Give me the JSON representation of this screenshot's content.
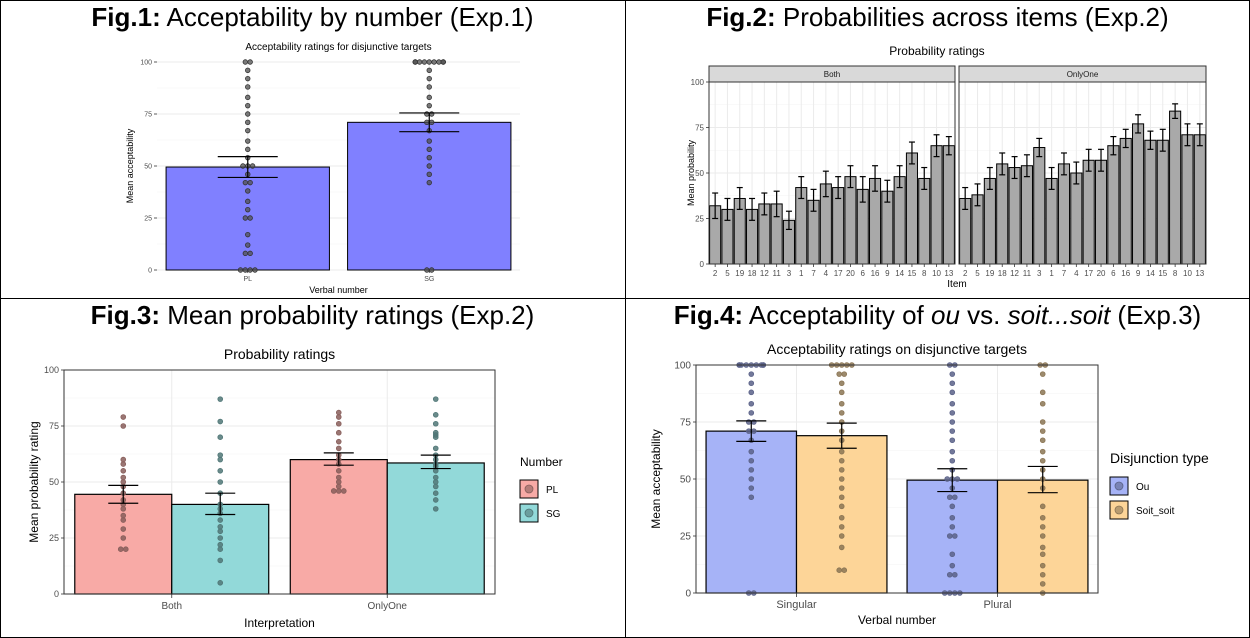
{
  "figures": [
    {
      "label": "Fig.1:",
      "title": " Acceptability by number (Exp.1)"
    },
    {
      "label": "Fig.2:",
      "title": " Probabilities across items (Exp.2)"
    },
    {
      "label": "Fig.3:",
      "title": " Mean probability ratings (Exp.2)"
    },
    {
      "label": "Fig.4:",
      "title_pre": " Acceptability of ",
      "title_em1": "ou",
      "title_mid": " vs. ",
      "title_em2": "soit...soit",
      "title_post": " (Exp.3)"
    }
  ],
  "colors": {
    "fig1_bar": "#8080ff",
    "fig2_bar": "#a9a9a9",
    "pl": "#f8aaa6",
    "sg": "#92d9d9",
    "ou": "#a6b3f7",
    "soit_soit": "#fdd598",
    "facet_strip": "#d9d9d9",
    "panel_border": "#333333"
  },
  "chart_data": [
    {
      "type": "bar",
      "title": "Acceptability ratings for disjunctive targets",
      "xlabel": "Verbal number",
      "ylabel": "Mean acceptability",
      "categories": [
        "PL",
        "SG"
      ],
      "values": [
        49.5,
        71.0
      ],
      "error": [
        [
          44.5,
          54.5
        ],
        [
          66.5,
          75.5
        ]
      ],
      "ylim": [
        0,
        100
      ],
      "yticks": [
        0,
        25,
        50,
        75,
        100
      ],
      "grid": true,
      "points": [
        [
          0,
          0,
          0,
          0,
          8,
          8,
          12,
          17,
          25,
          25,
          29,
          33,
          38,
          42,
          42,
          46,
          50,
          50,
          50,
          54,
          58,
          62,
          67,
          71,
          75,
          79,
          83,
          88,
          92,
          96,
          100,
          100
        ],
        [
          0,
          0,
          42,
          46,
          50,
          54,
          58,
          62,
          67,
          71,
          71,
          75,
          75,
          79,
          83,
          88,
          92,
          96,
          100,
          100,
          100,
          100,
          100,
          100,
          100,
          100,
          100
        ]
      ]
    },
    {
      "type": "bar",
      "title": "Probability ratings",
      "xlabel": "Item",
      "ylabel": "Mean probability",
      "facets": [
        "Both",
        "OnlyOne"
      ],
      "categories": [
        "2",
        "5",
        "19",
        "18",
        "12",
        "11",
        "3",
        "1",
        "7",
        "4",
        "17",
        "20",
        "6",
        "16",
        "9",
        "14",
        "15",
        "8",
        "10",
        "13"
      ],
      "series": [
        {
          "facet": "Both",
          "values": [
            32,
            30,
            36,
            30,
            33,
            33,
            24,
            42,
            35,
            44,
            42,
            48,
            41,
            47,
            40,
            48,
            61,
            47,
            65,
            65
          ],
          "error": [
            7,
            6,
            6,
            6,
            6,
            7,
            5,
            6,
            6,
            7,
            6,
            6,
            7,
            7,
            6,
            6,
            6,
            6,
            6,
            5
          ]
        },
        {
          "facet": "OnlyOne",
          "values": [
            36,
            38,
            47,
            55,
            53,
            54,
            64,
            47,
            55,
            50,
            57,
            57,
            65,
            69,
            77,
            68,
            68,
            84,
            71,
            71
          ],
          "error": [
            6,
            6,
            6,
            6,
            6,
            6,
            5,
            6,
            6,
            6,
            6,
            6,
            5,
            5,
            5,
            5,
            6,
            4,
            6,
            6
          ]
        }
      ],
      "ylim": [
        0,
        100
      ],
      "yticks": [
        0,
        25,
        50,
        75,
        100
      ],
      "grid": true
    },
    {
      "type": "bar",
      "title": "Probability ratings",
      "xlabel": "Interpretation",
      "ylabel": "Mean probability rating",
      "categories": [
        "Both",
        "OnlyOne"
      ],
      "legend": {
        "title": "Number",
        "position": "right"
      },
      "series": [
        {
          "name": "PL",
          "values": [
            44.5,
            60.0
          ],
          "error": [
            [
              40.5,
              48.5
            ],
            [
              57.5,
              63.0
            ]
          ],
          "points": [
            [
              20,
              20,
              25,
              29,
              33,
              35,
              38,
              40,
              42,
              45,
              48,
              50,
              52,
              55,
              58,
              60,
              75,
              79
            ],
            [
              46,
              46,
              46,
              48,
              50,
              52,
              55,
              58,
              60,
              62,
              65,
              68,
              72,
              76,
              79,
              81
            ]
          ]
        },
        {
          "name": "SG",
          "values": [
            40.0,
            58.5
          ],
          "error": [
            [
              35.5,
              45.0
            ],
            [
              56.0,
              62.0
            ]
          ],
          "points": [
            [
              5,
              15,
              20,
              22,
              25,
              28,
              30,
              33,
              36,
              38,
              40,
              45,
              50,
              55,
              60,
              62,
              70,
              77,
              87
            ],
            [
              38,
              42,
              45,
              48,
              50,
              52,
              55,
              57,
              58,
              60,
              62,
              65,
              70,
              71,
              72,
              76,
              80,
              87
            ]
          ]
        }
      ],
      "ylim": [
        0,
        100
      ],
      "yticks": [
        0,
        25,
        50,
        75,
        100
      ],
      "grid": true
    },
    {
      "type": "bar",
      "title": "Acceptability ratings on disjunctive targets",
      "xlabel": "Verbal number",
      "ylabel": "Mean acceptability",
      "categories": [
        "Singular",
        "Plural"
      ],
      "legend": {
        "title": "Disjunction type",
        "position": "right"
      },
      "series": [
        {
          "name": "Ou",
          "values": [
            71.0,
            49.5
          ],
          "error": [
            [
              66.5,
              75.5
            ],
            [
              44.5,
              54.5
            ]
          ],
          "points": [
            [
              0,
              0,
              42,
              46,
              50,
              54,
              58,
              62,
              67,
              71,
              71,
              75,
              75,
              79,
              83,
              88,
              92,
              96,
              100,
              100,
              100,
              100,
              100,
              100,
              100,
              100,
              100
            ],
            [
              0,
              0,
              0,
              0,
              8,
              8,
              12,
              17,
              25,
              25,
              29,
              33,
              38,
              42,
              42,
              46,
              50,
              50,
              50,
              54,
              58,
              62,
              67,
              71,
              75,
              79,
              83,
              88,
              92,
              96,
              100,
              100
            ]
          ]
        },
        {
          "name": "Soit_soit",
          "values": [
            69.0,
            49.5
          ],
          "error": [
            [
              63.5,
              74.5
            ],
            [
              44.0,
              55.5
            ]
          ],
          "points": [
            [
              10,
              10,
              20,
              25,
              29,
              33,
              38,
              42,
              46,
              50,
              54,
              58,
              62,
              67,
              71,
              75,
              79,
              83,
              88,
              92,
              96,
              96,
              100,
              100,
              100,
              100,
              100
            ],
            [
              0,
              4,
              8,
              12,
              17,
              20,
              25,
              29,
              33,
              38,
              46,
              50,
              54,
              58,
              62,
              67,
              71,
              75,
              83,
              88,
              96,
              100,
              100
            ]
          ]
        }
      ],
      "ylim": [
        0,
        100
      ],
      "yticks": [
        0,
        25,
        50,
        75,
        100
      ],
      "grid": true
    }
  ]
}
